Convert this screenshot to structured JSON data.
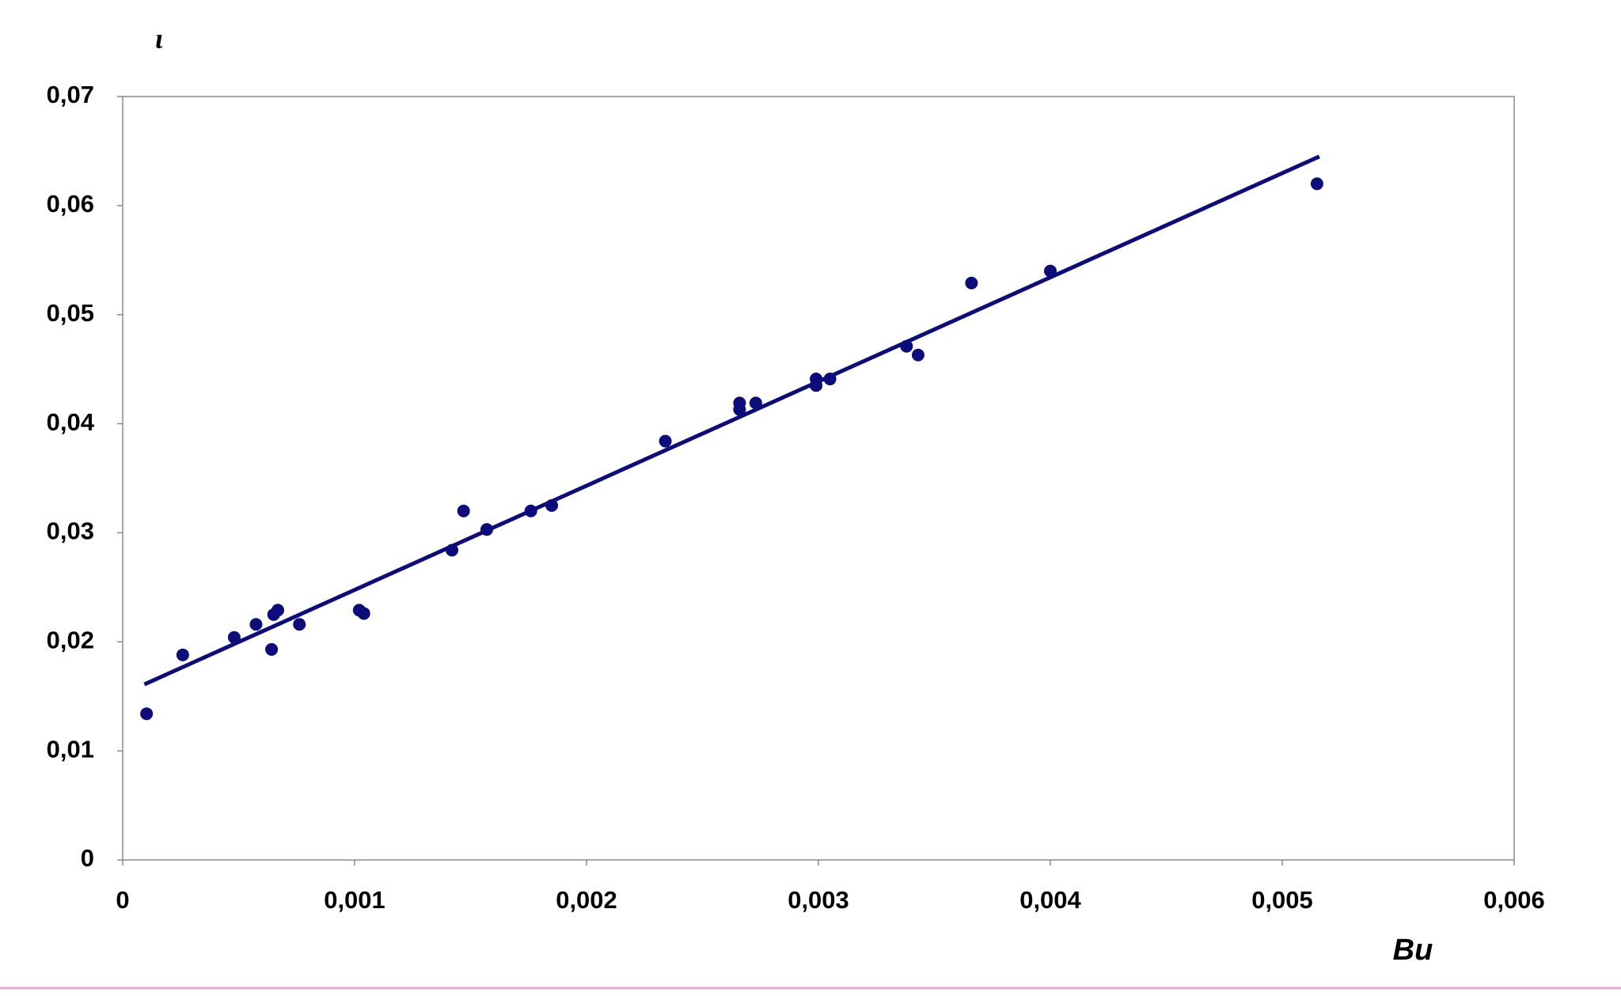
{
  "chart_data": {
    "type": "scatter",
    "x_label": "Bu",
    "y_label": "ι",
    "xlim": [
      0,
      0.006
    ],
    "xticks": [
      0,
      {
        "value": 0.001,
        "label": "0,001"
      },
      {
        "value": 0.002,
        "label": "0,002"
      },
      {
        "value": 0.003,
        "label": "0,003"
      },
      {
        "value": 0.004,
        "label": "0,004"
      },
      {
        "value": 0.005,
        "label": "0,005"
      },
      {
        "value": 0.006,
        "label": "0,006"
      }
    ],
    "ylim": [
      0,
      0.07
    ],
    "yticks": [
      0,
      {
        "value": 0.01,
        "label": "0,01"
      },
      {
        "value": 0.02,
        "label": "0,02"
      },
      {
        "value": 0.03,
        "label": "0,03"
      },
      {
        "value": 0.04,
        "label": "0,04"
      },
      {
        "value": 0.05,
        "label": "0,05"
      },
      {
        "value": 0.06,
        "label": "0,06"
      },
      {
        "value": 0.07,
        "label": "0,07"
      }
    ],
    "grid": false,
    "series": [
      {
        "type": "scatter",
        "color": "#0c0c7a",
        "x": [
          0.000103,
          0.000259,
          0.000481,
          0.000575,
          0.000642,
          0.000651,
          0.000669,
          0.000762,
          0.00102,
          0.00104,
          0.00142,
          0.00147,
          0.00157,
          0.00176,
          0.00185,
          0.00234,
          0.00266,
          0.00266,
          0.00273,
          0.00299,
          0.00299,
          0.00305,
          0.00338,
          0.00343,
          0.00366,
          0.004,
          0.00515
        ],
        "values": [
          0.0134,
          0.0188,
          0.0204,
          0.0216,
          0.0193,
          0.0225,
          0.0229,
          0.0216,
          0.0229,
          0.0226,
          0.0284,
          0.032,
          0.0303,
          0.032,
          0.0325,
          0.0384,
          0.0419,
          0.0413,
          0.0419,
          0.0441,
          0.0435,
          0.0441,
          0.0471,
          0.0463,
          0.0529,
          0.054,
          0.062
        ]
      },
      {
        "type": "line",
        "color": "#0c0c7a",
        "x": [
          9.36e-05,
          0.00516
        ],
        "values": [
          0.0161,
          0.0645
        ]
      }
    ]
  }
}
